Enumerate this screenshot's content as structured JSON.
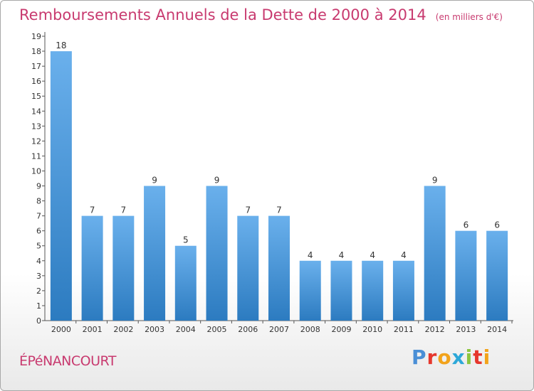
{
  "chart_data": {
    "type": "bar",
    "title": "Remboursements Annuels de la Dette de 2000 à 2014",
    "unit": "(en milliers d'€)",
    "categories": [
      "2000",
      "2001",
      "2002",
      "2003",
      "2004",
      "2005",
      "2006",
      "2007",
      "2008",
      "2009",
      "2010",
      "2011",
      "2012",
      "2013",
      "2014"
    ],
    "values": [
      18,
      7,
      7,
      9,
      5,
      9,
      7,
      7,
      4,
      4,
      4,
      4,
      9,
      6,
      6
    ],
    "data_labels": [
      "18",
      "7",
      "7",
      "9",
      "5",
      "9",
      "7",
      "7",
      "4",
      "4",
      "4",
      "4",
      "9",
      "6",
      "6"
    ],
    "yticks": [
      "0",
      "1",
      "2",
      "3",
      "4",
      "5",
      "6",
      "7",
      "8",
      "9",
      "10",
      "11",
      "12",
      "13",
      "14",
      "15",
      "16",
      "17",
      "18",
      "19"
    ],
    "ylim": [
      0,
      19
    ],
    "grid": false,
    "xlabel": "",
    "ylabel": "",
    "colors": {
      "bar_light": "#6aaeea",
      "bar_dark": "#2f7fc4",
      "title": "#c83a6f",
      "axis": "#555555"
    }
  },
  "footer": {
    "commune": "ÉPéNANCOURT",
    "logo": {
      "letters": [
        "P",
        "r",
        "o",
        "x",
        "i",
        "t",
        "i"
      ],
      "colors": [
        "#4a8fd6",
        "#e6372d",
        "#f2a31b",
        "#2da8d8",
        "#8cc63f",
        "#e6372d",
        "#f2a31b"
      ]
    }
  }
}
